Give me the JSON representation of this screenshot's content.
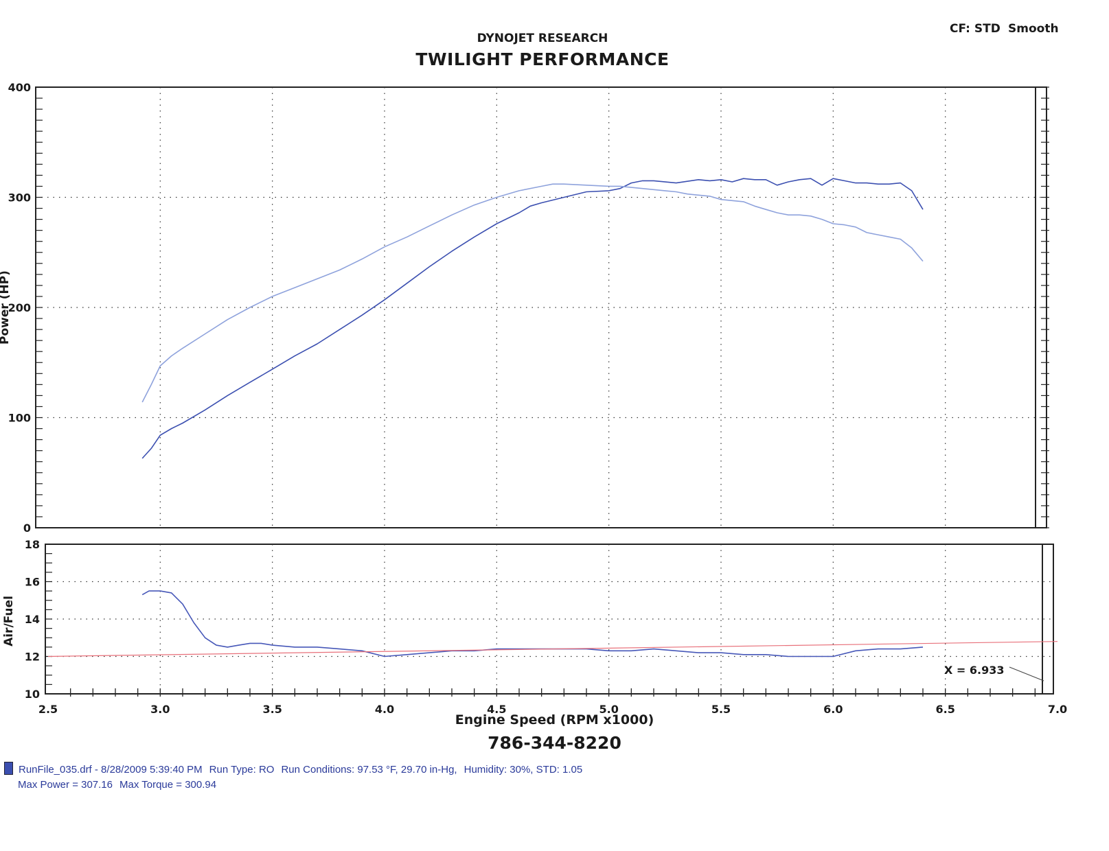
{
  "header": {
    "brand": "DYNOJET RESEARCH",
    "title": "TWILIGHT PERFORMANCE",
    "cf": "CF: STD",
    "smooth": "Smooth"
  },
  "phone": "786-344-8220",
  "footer": {
    "file": "RunFile_035.drf - 8/28/2009 5:39:40 PM",
    "run_type": "Run Type: RO",
    "conditions": "Run Conditions: 97.53 °F, 29.70 in-Hg,",
    "humidity": "Humidity:  30%, STD: 1.05",
    "max_power": "Max Power = 307.16",
    "max_torque": "Max Torque = 300.94",
    "series_color": "#3b4fb0"
  },
  "colors": {
    "power": "#3b4fb0",
    "torque": "#8ea2dc",
    "afr": "#4657b8",
    "afr_target": "#e8707a"
  },
  "chart_data": [
    {
      "type": "line",
      "panel": "power",
      "ylabel": "Power (HP)",
      "xlabel": "Engine Speed (RPM x1000)",
      "xlim": [
        2.5,
        7.0
      ],
      "ylim": [
        0,
        400
      ],
      "x_ticks": [
        "2.5",
        "3.0",
        "3.5",
        "4.0",
        "4.5",
        "5.0",
        "5.5",
        "6.0",
        "6.5",
        "7.0"
      ],
      "y_ticks": [
        "0",
        "100",
        "200",
        "300",
        "400"
      ],
      "grid": true,
      "series": [
        {
          "role": "power",
          "x": [
            2.92,
            2.96,
            3.0,
            3.05,
            3.1,
            3.2,
            3.3,
            3.4,
            3.5,
            3.6,
            3.7,
            3.8,
            3.9,
            4.0,
            4.1,
            4.2,
            4.3,
            4.4,
            4.5,
            4.6,
            4.65,
            4.7,
            4.8,
            4.9,
            5.0,
            5.05,
            5.1,
            5.15,
            5.2,
            5.3,
            5.4,
            5.45,
            5.5,
            5.55,
            5.6,
            5.65,
            5.7,
            5.75,
            5.8,
            5.85,
            5.9,
            5.95,
            6.0,
            6.05,
            6.1,
            6.15,
            6.2,
            6.25,
            6.3,
            6.35,
            6.4
          ],
          "y": [
            63,
            72,
            84,
            90,
            95,
            107,
            120,
            132,
            144,
            156,
            167,
            180,
            193,
            207,
            222,
            237,
            251,
            264,
            276,
            286,
            292,
            295,
            300,
            305,
            306,
            308,
            313,
            315,
            315,
            313,
            316,
            315,
            316,
            314,
            317,
            316,
            316,
            311,
            314,
            316,
            317,
            311,
            317,
            315,
            313,
            313,
            312,
            312,
            313,
            306,
            289
          ]
        },
        {
          "role": "torque",
          "x": [
            2.92,
            2.96,
            3.0,
            3.05,
            3.1,
            3.2,
            3.3,
            3.4,
            3.5,
            3.6,
            3.7,
            3.8,
            3.9,
            4.0,
            4.1,
            4.2,
            4.3,
            4.4,
            4.5,
            4.6,
            4.7,
            4.75,
            4.8,
            4.9,
            5.0,
            5.05,
            5.1,
            5.15,
            5.2,
            5.25,
            5.3,
            5.35,
            5.4,
            5.45,
            5.5,
            5.55,
            5.6,
            5.65,
            5.7,
            5.75,
            5.8,
            5.85,
            5.9,
            5.95,
            6.0,
            6.05,
            6.1,
            6.15,
            6.2,
            6.25,
            6.3,
            6.35,
            6.4
          ],
          "y": [
            114,
            130,
            147,
            156,
            163,
            176,
            189,
            200,
            210,
            218,
            226,
            234,
            244,
            255,
            264,
            274,
            284,
            293,
            300,
            306,
            310,
            312,
            312,
            311,
            310,
            310,
            309,
            308,
            307,
            306,
            305,
            303,
            302,
            301,
            298,
            297,
            296,
            292,
            289,
            286,
            284,
            284,
            283,
            280,
            276,
            275,
            273,
            268,
            266,
            264,
            262,
            254,
            242
          ]
        }
      ]
    },
    {
      "type": "line",
      "panel": "afr",
      "ylabel": "Air/Fuel",
      "xlim": [
        2.5,
        7.0
      ],
      "ylim": [
        10,
        18
      ],
      "y_ticks": [
        "10",
        "12",
        "14",
        "16",
        "18"
      ],
      "grid": true,
      "annotation": "X = 6.933",
      "series": [
        {
          "role": "afr",
          "x": [
            2.92,
            2.95,
            3.0,
            3.05,
            3.1,
            3.15,
            3.2,
            3.25,
            3.3,
            3.35,
            3.4,
            3.45,
            3.5,
            3.6,
            3.7,
            3.8,
            3.9,
            4.0,
            4.1,
            4.2,
            4.3,
            4.4,
            4.5,
            4.6,
            4.7,
            4.8,
            4.9,
            5.0,
            5.1,
            5.2,
            5.3,
            5.4,
            5.5,
            5.6,
            5.7,
            5.8,
            5.9,
            6.0,
            6.1,
            6.2,
            6.3,
            6.4
          ],
          "y": [
            15.3,
            15.5,
            15.5,
            15.4,
            14.8,
            13.8,
            13.0,
            12.6,
            12.5,
            12.6,
            12.7,
            12.7,
            12.6,
            12.5,
            12.5,
            12.4,
            12.3,
            12.0,
            12.1,
            12.2,
            12.3,
            12.3,
            12.4,
            12.4,
            12.4,
            12.4,
            12.4,
            12.3,
            12.3,
            12.4,
            12.3,
            12.2,
            12.2,
            12.1,
            12.1,
            12.0,
            12.0,
            12.0,
            12.3,
            12.4,
            12.4,
            12.5
          ]
        },
        {
          "role": "afr_target",
          "x": [
            2.5,
            7.0
          ],
          "y": [
            12.0,
            12.8
          ]
        }
      ]
    }
  ]
}
